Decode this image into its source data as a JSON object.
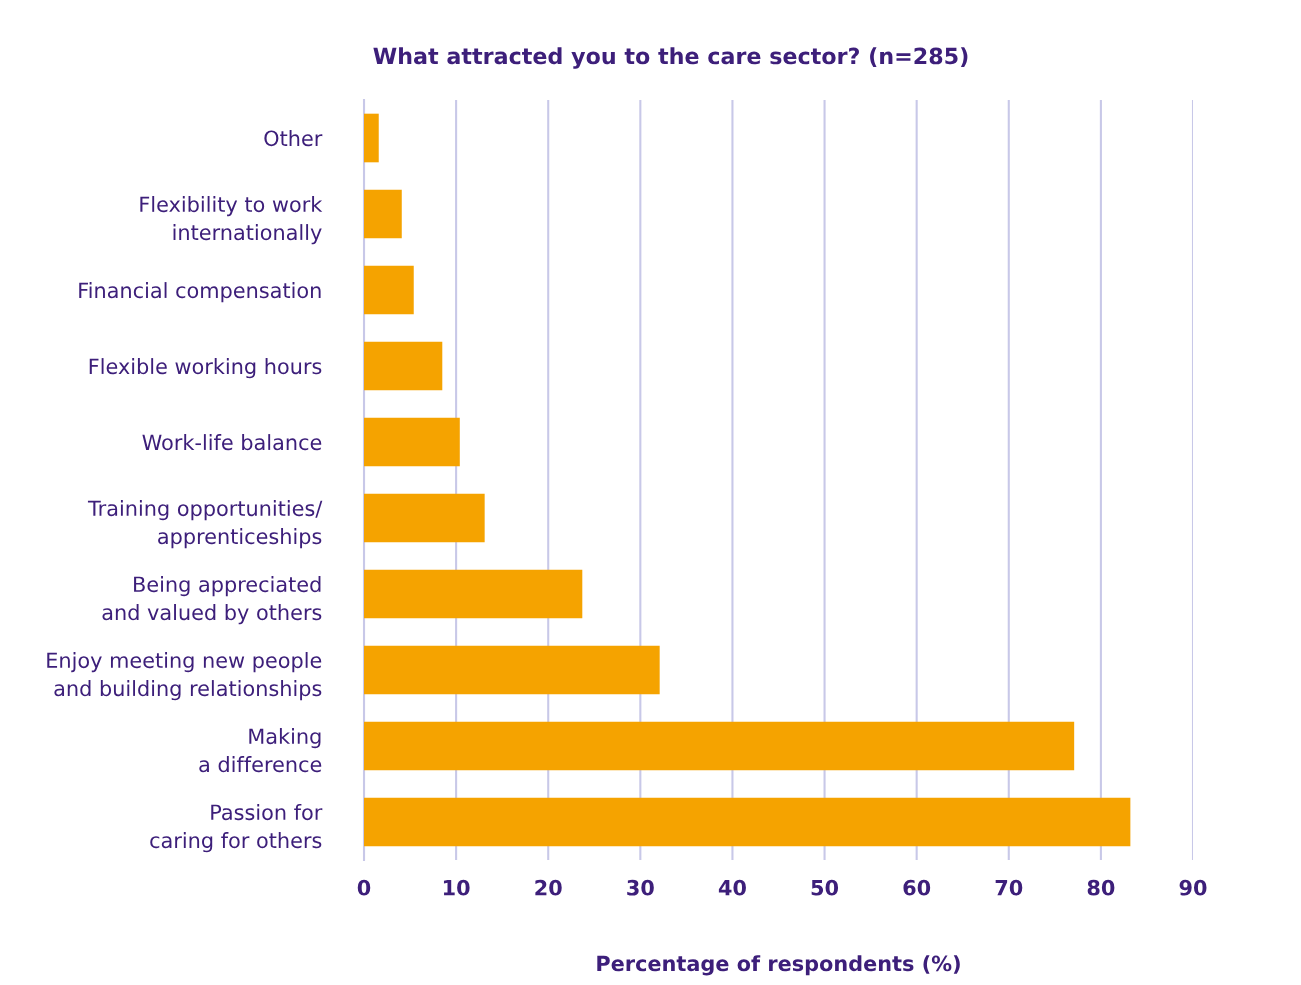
{
  "chart_data": {
    "type": "bar",
    "orientation": "horizontal",
    "title": "What attracted you to the care sector? (n=285)",
    "xlabel": "Percentage of respondents (%)",
    "categories": [
      "Other",
      "Flexibility to work\ninternationally",
      "Financial compensation",
      "Flexible working hours",
      "Work-life balance",
      "Training opportunities/\napprenticeships",
      "Being appreciated\nand valued by others",
      "Enjoy meeting new people\nand building relationships",
      "Making\na difference",
      "Passion for\ncaring for others"
    ],
    "values": [
      1.6,
      4.1,
      5.4,
      8.5,
      10.4,
      13.1,
      23.7,
      32.1,
      77.1,
      83.2
    ],
    "color": "#f5a300",
    "xlim": [
      0,
      90
    ],
    "xticks": [
      0,
      10,
      20,
      30,
      40,
      50,
      60,
      70,
      80,
      90
    ],
    "grid": "x"
  }
}
